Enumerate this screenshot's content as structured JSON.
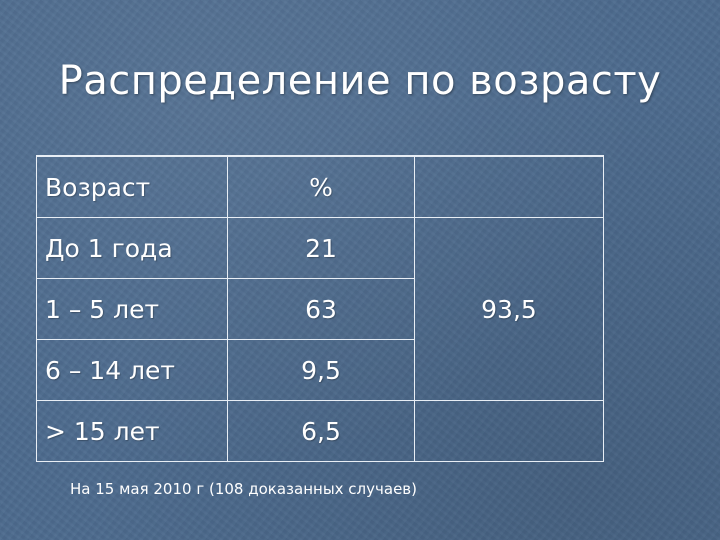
{
  "title": "Распределение по возрасту",
  "table": {
    "header": {
      "age": "Возраст",
      "percent": "%",
      "extra": ""
    },
    "rows": [
      {
        "age": "До 1 года",
        "percent": "21"
      },
      {
        "age": "1 – 5 лет",
        "percent": "63"
      },
      {
        "age": "6 – 14 лет",
        "percent": "9,5"
      },
      {
        "age": "> 15  лет",
        "percent": "6,5"
      }
    ],
    "merged_value": "93,5"
  },
  "footnote": "На 15 мая 2010 г (108 доказанных случаев)"
}
